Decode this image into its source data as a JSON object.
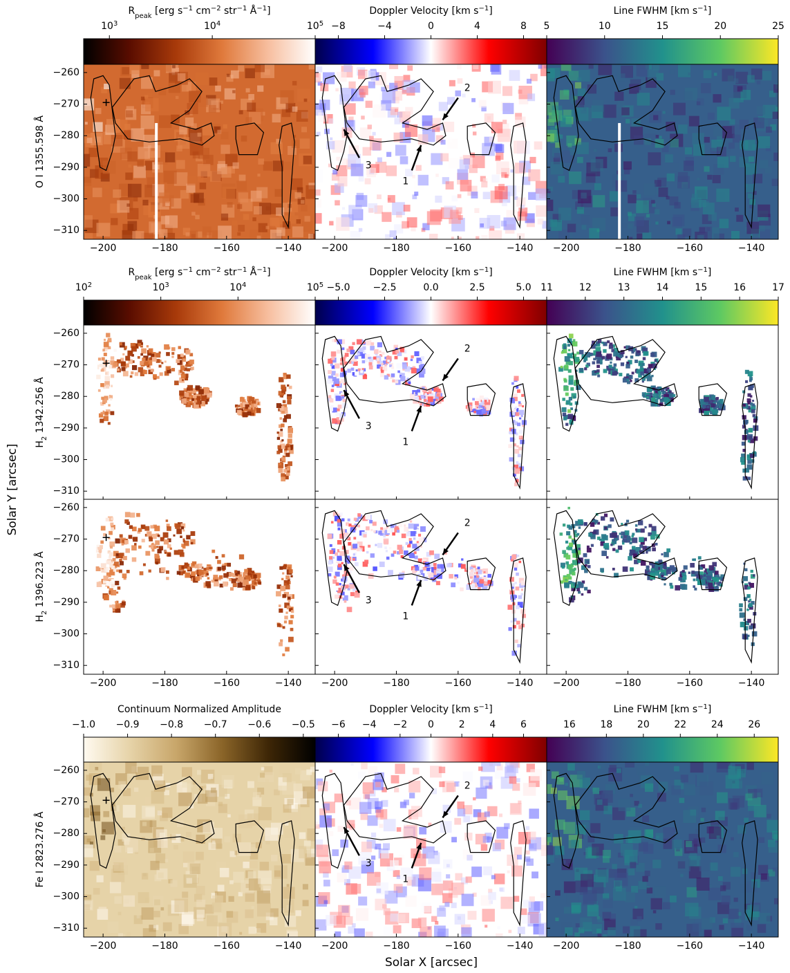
{
  "figure": {
    "x_label": "Solar X [arcsec]",
    "y_label": "Solar Y [arcsec]",
    "xlim": [
      -206.3,
      -131.3
    ],
    "xticks": [
      {
        "value": -200,
        "label": "−200"
      },
      {
        "value": -180,
        "label": "−180"
      },
      {
        "value": -160,
        "label": "−160"
      },
      {
        "value": -140,
        "label": "−140"
      }
    ],
    "ylim": [
      -312.8,
      -257.4
    ],
    "yticks": [
      {
        "value": -310,
        "label": "−310"
      },
      {
        "value": -300,
        "label": "−300"
      },
      {
        "value": -290,
        "label": "−290"
      },
      {
        "value": -280,
        "label": "−280"
      },
      {
        "value": -270,
        "label": "−270"
      },
      {
        "value": -260,
        "label": "−260"
      }
    ],
    "annotations": [
      "1",
      "2",
      "3"
    ],
    "colorbar_groups": [
      {
        "colorbars": [
          {
            "title": [
              {
                "t": "R"
              },
              {
                "t": "peak",
                "pos": "sub"
              },
              {
                "t": " [erg s"
              },
              {
                "t": "−1",
                "pos": "sup"
              },
              {
                "t": " cm"
              },
              {
                "t": "−2",
                "pos": "sup"
              },
              {
                "t": " str"
              },
              {
                "t": "−1",
                "pos": "sup"
              },
              {
                "t": " Å"
              },
              {
                "t": "−1",
                "pos": "sup"
              },
              {
                "t": "]"
              }
            ],
            "scale": "log",
            "clim": [
              562,
              100000
            ],
            "ticks": [
              {
                "value": 1000,
                "label": "10",
                "label_sup": "3"
              },
              {
                "value": 10000,
                "label": "10",
                "label_sup": "4"
              },
              {
                "value": 100000,
                "label": "10",
                "label_sup": "5"
              }
            ],
            "colors": [
              "#000000",
              "#5a0d00",
              "#a83a0a",
              "#e07a3c",
              "#f7bfa0",
              "#ffffff"
            ]
          },
          {
            "title": [
              {
                "t": "Doppler Velocity [km s"
              },
              {
                "t": "−1",
                "pos": "sup"
              },
              {
                "t": "]"
              }
            ],
            "scale": "linear",
            "clim": [
              -10,
              10
            ],
            "ticks": [
              {
                "value": -8,
                "label": "−8"
              },
              {
                "value": -4,
                "label": "−4"
              },
              0,
              4,
              8
            ],
            "colors": [
              "#00004c",
              "#0000ff",
              "#ffffff",
              "#ff0000",
              "#800000"
            ]
          },
          {
            "title": [
              {
                "t": "Line FWHM [km s"
              },
              {
                "t": "−1",
                "pos": "sup"
              },
              {
                "t": "]"
              }
            ],
            "scale": "linear",
            "clim": [
              5,
              25
            ],
            "ticks": [
              5,
              10,
              15,
              20,
              25
            ],
            "colors": [
              "#440154",
              "#3b528b",
              "#21918c",
              "#5ec962",
              "#fde725"
            ]
          }
        ]
      },
      {
        "colorbars": [
          {
            "title": [
              {
                "t": "R"
              },
              {
                "t": "peak",
                "pos": "sub"
              },
              {
                "t": " [erg s"
              },
              {
                "t": "−1",
                "pos": "sup"
              },
              {
                "t": " cm"
              },
              {
                "t": "−2",
                "pos": "sup"
              },
              {
                "t": " str"
              },
              {
                "t": "−1",
                "pos": "sup"
              },
              {
                "t": " Å"
              },
              {
                "t": "−1",
                "pos": "sup"
              },
              {
                "t": "]"
              }
            ],
            "scale": "log",
            "clim": [
              100,
              100000
            ],
            "ticks": [
              {
                "value": 100,
                "label": "10",
                "label_sup": "2"
              },
              {
                "value": 1000,
                "label": "10",
                "label_sup": "3"
              },
              {
                "value": 10000,
                "label": "10",
                "label_sup": "4"
              },
              {
                "value": 100000,
                "label": "10",
                "label_sup": "5"
              }
            ],
            "colors": [
              "#000000",
              "#5a0d00",
              "#a83a0a",
              "#e07a3c",
              "#f7bfa0",
              "#ffffff"
            ]
          },
          {
            "title": [
              {
                "t": "Doppler Velocity [km s"
              },
              {
                "t": "−1",
                "pos": "sup"
              },
              {
                "t": "]"
              }
            ],
            "scale": "linear",
            "clim": [
              -6.25,
              6.25
            ],
            "ticks": [
              {
                "value": -5,
                "label": "−5.0"
              },
              {
                "value": -2.5,
                "label": "−2.5"
              },
              {
                "value": 0,
                "label": "0.0"
              },
              2.5,
              {
                "value": 5,
                "label": "5.0"
              }
            ],
            "colors": [
              "#00004c",
              "#0000ff",
              "#ffffff",
              "#ff0000",
              "#800000"
            ]
          },
          {
            "title": [
              {
                "t": "Line FWHM [km s"
              },
              {
                "t": "−1",
                "pos": "sup"
              },
              {
                "t": "]"
              }
            ],
            "scale": "linear",
            "clim": [
              11,
              17
            ],
            "ticks": [
              11,
              12,
              13,
              14,
              15,
              16,
              17
            ],
            "colors": [
              "#440154",
              "#3b528b",
              "#21918c",
              "#5ec962",
              "#fde725"
            ]
          }
        ]
      },
      {
        "colorbars": [
          {
            "title": [
              {
                "t": "Continuum Normalized Amplitude"
              }
            ],
            "scale": "linear",
            "clim": [
              -1.0,
              -0.473
            ],
            "ticks": [
              {
                "value": -1.0,
                "label": "−1.0"
              },
              {
                "value": -0.9,
                "label": "−0.9"
              },
              {
                "value": -0.8,
                "label": "−0.8"
              },
              {
                "value": -0.7,
                "label": "−0.7"
              },
              {
                "value": -0.6,
                "label": "−0.6"
              },
              {
                "value": -0.5,
                "label": "−0.5"
              }
            ],
            "colors": [
              "#fffaf0",
              "#e6d3a8",
              "#c8a66a",
              "#8a6428",
              "#3d2606",
              "#000000"
            ]
          },
          {
            "title": [
              {
                "t": "Doppler Velocity [km s"
              },
              {
                "t": "−1",
                "pos": "sup"
              },
              {
                "t": "]"
              }
            ],
            "scale": "linear",
            "clim": [
              -7.5,
              7.5
            ],
            "ticks": [
              {
                "value": -6,
                "label": "−6"
              },
              {
                "value": -4,
                "label": "−4"
              },
              {
                "value": -2,
                "label": "−2"
              },
              0,
              2,
              4,
              6
            ],
            "colors": [
              "#00004c",
              "#0000ff",
              "#ffffff",
              "#ff0000",
              "#800000"
            ]
          },
          {
            "title": [
              {
                "t": "Line FWHM [km s"
              },
              {
                "t": "−1",
                "pos": "sup"
              },
              {
                "t": "]"
              }
            ],
            "scale": "linear",
            "clim": [
              14.77,
              27.3
            ],
            "ticks": [
              16,
              18,
              20,
              22,
              24,
              26
            ],
            "colors": [
              "#440154",
              "#3b528b",
              "#21918c",
              "#5ec962",
              "#fde725"
            ]
          }
        ]
      }
    ],
    "rows": [
      {
        "label": [
          {
            "t": "O I 1355.598 Å"
          }
        ]
      },
      {
        "label": [
          {
            "t": "H"
          },
          {
            "t": "2",
            "pos": "sub"
          },
          {
            "t": " 1342.256 Å"
          }
        ]
      },
      {
        "label": [
          {
            "t": "H"
          },
          {
            "t": "2",
            "pos": "sub"
          },
          {
            "t": " 1396.223 Å"
          }
        ]
      },
      {
        "label": [
          {
            "t": "Fe I 2823.276 Å"
          }
        ]
      }
    ]
  }
}
